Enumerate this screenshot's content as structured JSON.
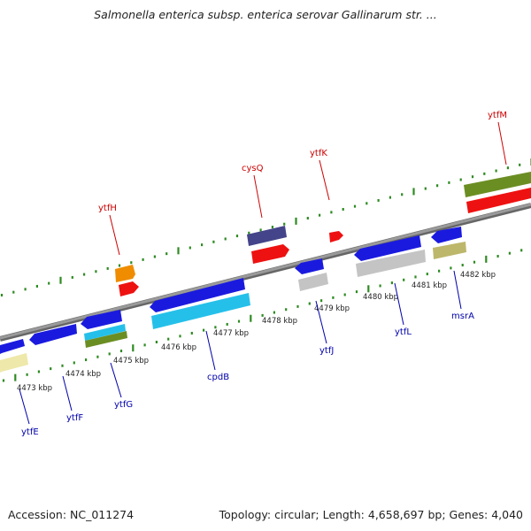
{
  "title": "Salmonella enterica subsp. enterica serovar Gallinarum str. ...",
  "footer": {
    "accession": "Accession: NC_011274",
    "summary": "Topology: circular; Length: 4,658,697 bp; Genes: 4,040"
  },
  "map": {
    "backbone_color": "#808080",
    "tick_color": "#2e8b22",
    "ruler_labels": [
      "4473 kbp",
      "4474 kbp",
      "4475 kbp",
      "4476 kbp",
      "4477 kbp",
      "4478 kbp",
      "4479 kbp",
      "4480 kbp",
      "4481 kbp",
      "4482 kbp"
    ],
    "top_genes": [
      {
        "name": "ytfH",
        "color": "#cc0000"
      },
      {
        "name": "cysQ",
        "color": "#cc0000"
      },
      {
        "name": "ytfK",
        "color": "#cc0000"
      },
      {
        "name": "ytfM",
        "color": "#cc0000"
      }
    ],
    "bottom_genes": [
      {
        "name": "ytfE",
        "color": "#0000aa"
      },
      {
        "name": "ytfF",
        "color": "#0000aa"
      },
      {
        "name": "ytfG",
        "color": "#0000aa"
      },
      {
        "name": "cpdB",
        "color": "#0000aa"
      },
      {
        "name": "ytfJ",
        "color": "#0000aa"
      },
      {
        "name": "ytfL",
        "color": "#0000aa"
      },
      {
        "name": "msrA",
        "color": "#0000aa"
      }
    ],
    "feature_colors": {
      "blue": "#1a1adf",
      "red": "#ee1111",
      "orange": "#f08c00",
      "navy": "#44448a",
      "cyan": "#25c0ea",
      "olive": "#6b8e23",
      "grey": "#c4c4c4",
      "khaki": "#bdb76b",
      "paleyellow": "#eee8aa"
    }
  }
}
